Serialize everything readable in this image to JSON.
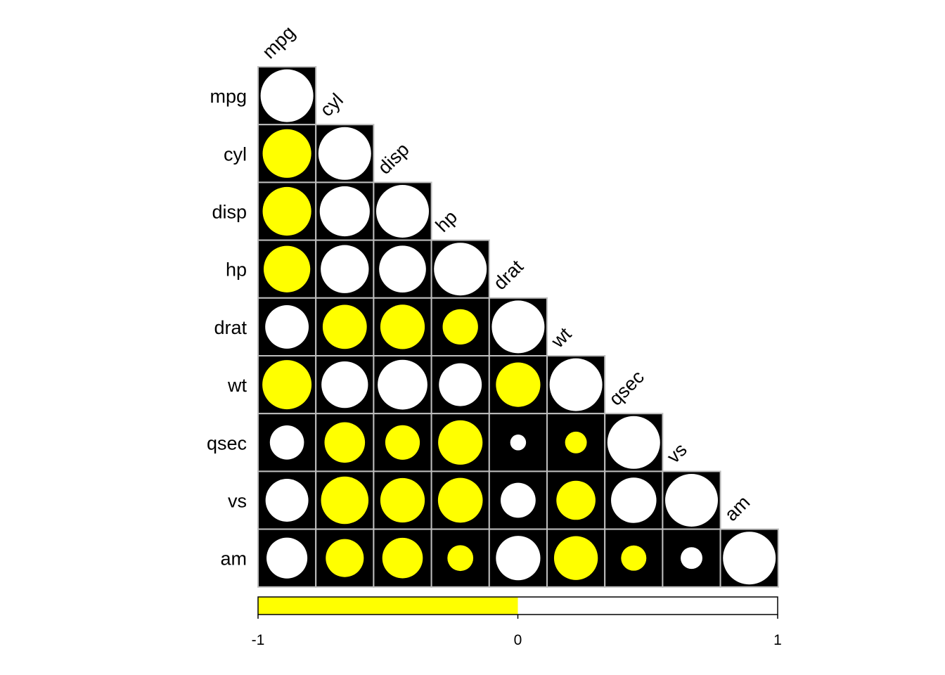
{
  "chart_data": {
    "type": "heatmap",
    "title": "",
    "variables": [
      "mpg",
      "cyl",
      "disp",
      "hp",
      "drat",
      "wt",
      "qsec",
      "vs",
      "am"
    ],
    "matrix_shape": "lower-triangular",
    "glyph": "circle",
    "correlations": [
      [
        1.0
      ],
      [
        -0.85,
        1.0
      ],
      [
        -0.85,
        0.9,
        1.0
      ],
      [
        -0.78,
        0.83,
        0.79,
        1.0
      ],
      [
        0.68,
        -0.7,
        -0.71,
        -0.45,
        1.0
      ],
      [
        -0.87,
        0.78,
        0.89,
        0.66,
        -0.71,
        1.0
      ],
      [
        0.42,
        -0.59,
        -0.43,
        -0.71,
        0.09,
        -0.17,
        1.0
      ],
      [
        0.66,
        -0.81,
        -0.71,
        -0.72,
        0.44,
        -0.55,
        0.74,
        1.0
      ],
      [
        0.6,
        -0.52,
        -0.59,
        -0.24,
        0.71,
        -0.69,
        -0.23,
        0.17,
        1.0
      ]
    ],
    "colorbar": {
      "ticks": [
        "-1",
        "0",
        "1"
      ],
      "range": [
        -1,
        1
      ]
    },
    "colors": {
      "negative": "#FFFF00",
      "positive": "#FFFFFF",
      "cell_background": "#000000",
      "cell_border": "#BEBEBE"
    }
  }
}
